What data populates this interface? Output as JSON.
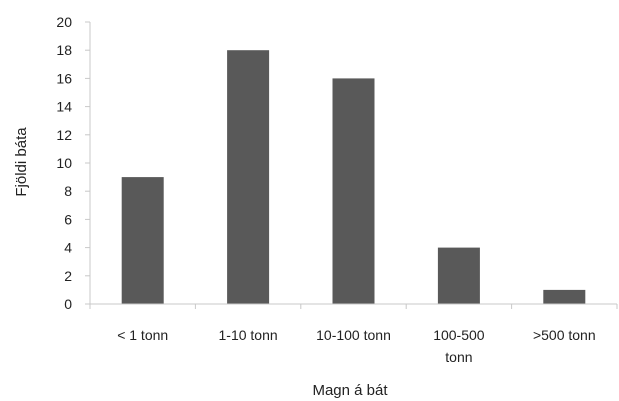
{
  "chart_data": {
    "type": "bar",
    "title": "",
    "xlabel": "Magn á bát",
    "ylabel": "Fjöldi báta",
    "categories": [
      "< 1 tonn",
      "1-10 tonn",
      "10-100 tonn",
      "100-500 tonn",
      ">500 tonn"
    ],
    "category_lines": [
      [
        "< 1 tonn"
      ],
      [
        "1-10 tonn"
      ],
      [
        "10-100 tonn"
      ],
      [
        "100-500",
        "tonn"
      ],
      [
        ">500 tonn"
      ]
    ],
    "values": [
      9,
      18,
      16,
      4,
      1
    ],
    "ylim": [
      0,
      20
    ],
    "yticks": [
      0,
      2,
      4,
      6,
      8,
      10,
      12,
      14,
      16,
      18,
      20
    ],
    "grid": false,
    "legend": "none",
    "bar_color": "#595959",
    "axis_color": "#c8c8c8"
  }
}
